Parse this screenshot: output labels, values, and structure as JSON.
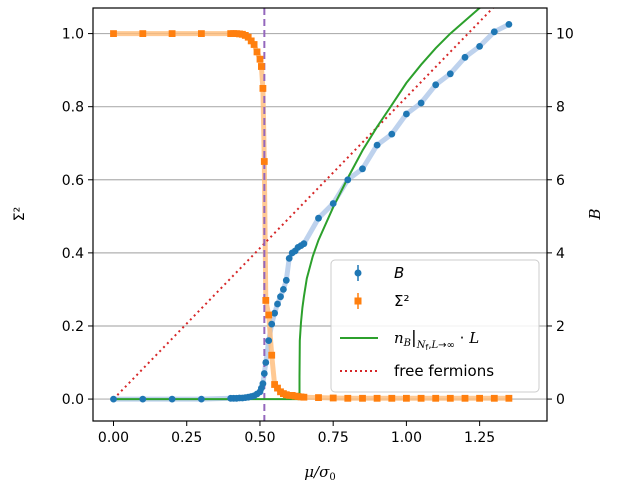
{
  "chart_data": {
    "type": "scatter",
    "xlabel": "μ/σ0",
    "ylabel_left": "Σ²",
    "ylabel_right": "B",
    "x_ticks": [
      "0.00",
      "0.25",
      "0.50",
      "0.75",
      "1.00",
      "1.25"
    ],
    "x_tick_values": [
      0,
      0.25,
      0.5,
      0.75,
      1.0,
      1.25
    ],
    "y_left_ticks": [
      "0.0",
      "0.2",
      "0.4",
      "0.6",
      "0.8",
      "1.0"
    ],
    "y_left_tick_values": [
      0,
      0.2,
      0.4,
      0.6,
      0.8,
      1.0
    ],
    "y_right_ticks": [
      "0",
      "2",
      "4",
      "6",
      "8",
      "10"
    ],
    "y_right_tick_values": [
      0,
      2,
      4,
      6,
      8,
      10
    ],
    "xlim": [
      -0.07,
      1.48
    ],
    "ylim_left": [
      -0.06,
      1.07
    ],
    "ylim_right": [
      -0.6,
      10.7
    ],
    "grid": "horizontal",
    "legend_position": "bottom-right",
    "vline_x": 0.515,
    "colors": {
      "B": "#1f77b4",
      "Sigma2": "#ff7f0e",
      "nB": "#2ca02c",
      "free": "#d62728",
      "vline": "#9467bd",
      "band": "#aec7e8",
      "band_orange": "#ffbb78"
    },
    "series": [
      {
        "name": "B",
        "axis": "right",
        "marker": "circle",
        "x": [
          0.0,
          0.1,
          0.2,
          0.3,
          0.4,
          0.41,
          0.42,
          0.43,
          0.44,
          0.45,
          0.46,
          0.47,
          0.48,
          0.49,
          0.5,
          0.505,
          0.51,
          0.515,
          0.52,
          0.53,
          0.54,
          0.55,
          0.56,
          0.57,
          0.58,
          0.59,
          0.6,
          0.61,
          0.62,
          0.63,
          0.64,
          0.65,
          0.7,
          0.75,
          0.8,
          0.85,
          0.9,
          0.95,
          1.0,
          1.05,
          1.1,
          1.15,
          1.2,
          1.25,
          1.3,
          1.35
        ],
        "y": [
          0,
          0,
          0,
          0,
          0.02,
          0.02,
          0.02,
          0.03,
          0.03,
          0.04,
          0.05,
          0.07,
          0.09,
          0.14,
          0.2,
          0.3,
          0.42,
          0.7,
          1.0,
          1.6,
          2.05,
          2.35,
          2.6,
          2.8,
          3.0,
          3.25,
          3.85,
          4.0,
          4.05,
          4.15,
          4.2,
          4.25,
          4.95,
          5.35,
          6.0,
          6.3,
          6.95,
          7.25,
          7.8,
          8.1,
          8.6,
          8.9,
          9.35,
          9.65,
          10.05,
          10.25
        ]
      },
      {
        "name": "Σ²",
        "axis": "left",
        "marker": "square",
        "x": [
          0.0,
          0.1,
          0.2,
          0.3,
          0.4,
          0.41,
          0.42,
          0.43,
          0.44,
          0.45,
          0.46,
          0.47,
          0.48,
          0.49,
          0.5,
          0.505,
          0.51,
          0.515,
          0.52,
          0.53,
          0.54,
          0.55,
          0.56,
          0.57,
          0.58,
          0.59,
          0.6,
          0.61,
          0.62,
          0.63,
          0.64,
          0.65,
          0.7,
          0.75,
          0.8,
          0.85,
          0.9,
          0.95,
          1.0,
          1.05,
          1.1,
          1.15,
          1.2,
          1.25,
          1.3,
          1.35
        ],
        "y": [
          1.0,
          1.0,
          1.0,
          1.0,
          1.0,
          1.0,
          1.0,
          0.999,
          0.998,
          0.995,
          0.99,
          0.98,
          0.97,
          0.95,
          0.93,
          0.91,
          0.85,
          0.65,
          0.27,
          0.23,
          0.12,
          0.04,
          0.03,
          0.02,
          0.015,
          0.012,
          0.01,
          0.01,
          0.008,
          0.007,
          0.006,
          0.005,
          0.004,
          0.003,
          0.002,
          0.002,
          0.002,
          0.002,
          0.002,
          0.002,
          0.002,
          0.002,
          0.002,
          0.002,
          0.002,
          0.002
        ]
      },
      {
        "name": "n_B|Nf, L→∞ · L",
        "axis": "right",
        "marker": "line",
        "x": [
          0.0,
          0.635,
          0.635,
          0.636,
          0.64,
          0.645,
          0.65,
          0.66,
          0.68,
          0.7,
          0.75,
          0.8,
          0.85,
          0.9,
          0.95,
          1.0,
          1.05,
          1.1,
          1.15,
          1.2,
          1.25,
          1.3
        ],
        "y": [
          0.0,
          0.0,
          0.6,
          1.6,
          2.1,
          2.5,
          2.8,
          3.3,
          3.9,
          4.35,
          5.25,
          6.05,
          6.8,
          7.45,
          8.05,
          8.65,
          9.15,
          9.6,
          10.0,
          10.35,
          10.7,
          10.95
        ]
      },
      {
        "name": "free fermions",
        "axis": "right",
        "marker": "dotted",
        "x": [
          0.0,
          1.3
        ],
        "y": [
          0.0,
          10.74
        ]
      }
    ],
    "legend": [
      {
        "key": "B",
        "label": "B"
      },
      {
        "key": "Sigma2",
        "label": "Σ²"
      },
      {
        "key": "nB",
        "label": "n_B|_{Nf, L→∞} · L"
      },
      {
        "key": "free",
        "label": "free fermions"
      }
    ]
  }
}
